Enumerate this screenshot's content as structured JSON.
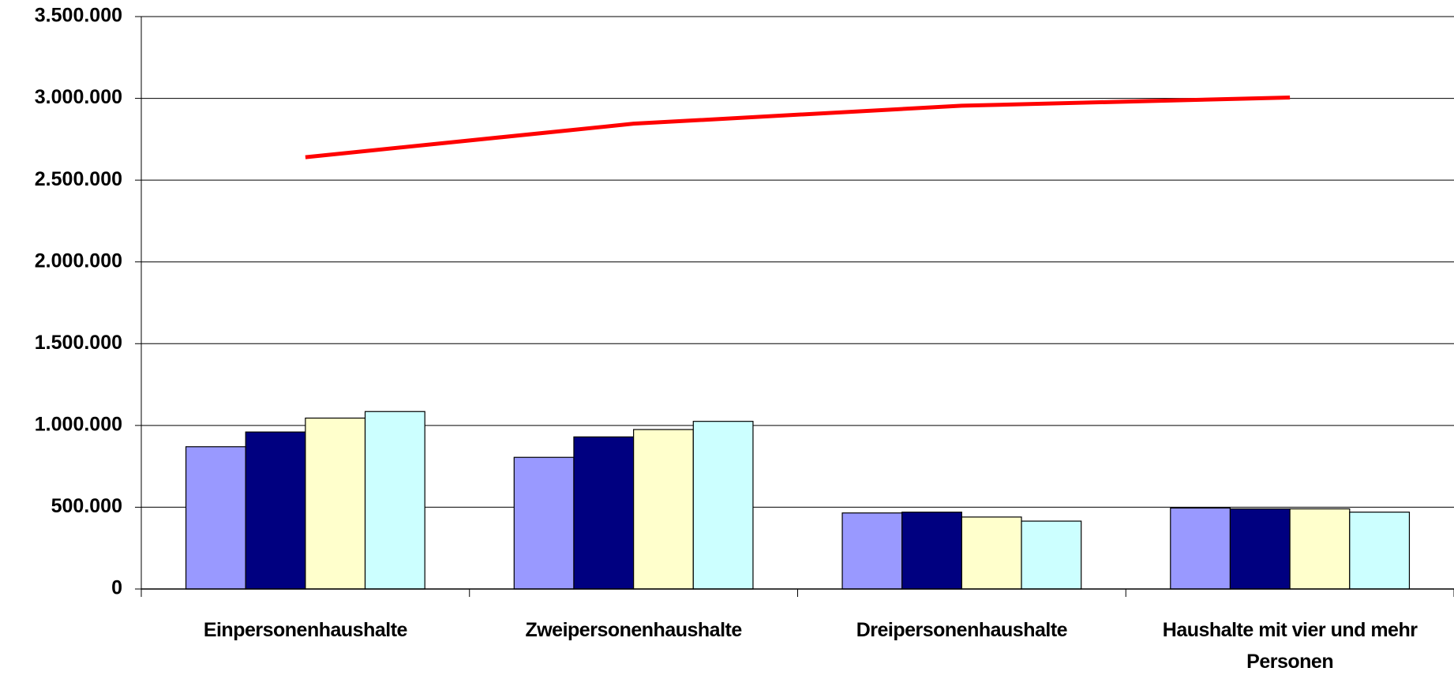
{
  "chart_data": {
    "type": "bar",
    "categories": [
      "Einpersonenhaushalte",
      "Zweipersonenhaushalte",
      "Dreipersonenhaushalte",
      "Haushalte mit vier und mehr Personen"
    ],
    "series": [
      {
        "color": "#9999ff",
        "values": [
          870000,
          805000,
          465000,
          495000
        ]
      },
      {
        "color": "#000080",
        "values": [
          960000,
          930000,
          470000,
          490000
        ]
      },
      {
        "color": "#ffffcc",
        "values": [
          1045000,
          975000,
          440000,
          490000
        ]
      },
      {
        "color": "#ccffff",
        "values": [
          1085000,
          1025000,
          415000,
          470000
        ]
      },
      {
        "type": "line",
        "color": "#ff0000",
        "values": [
          2640000,
          2845000,
          2955000,
          3005000
        ]
      }
    ],
    "ylim": [
      0,
      3500000
    ],
    "yticks": [
      0,
      {
        "value": 500000,
        "label": "500.000"
      },
      {
        "value": 1000000,
        "label": "1.000.000"
      },
      {
        "value": 1500000,
        "label": "1.500.000"
      },
      {
        "value": 2000000,
        "label": "2.000.000"
      },
      {
        "value": 2500000,
        "label": "2.500.000"
      },
      {
        "value": 3000000,
        "label": "3.000.000"
      },
      {
        "value": 3500000,
        "label": "3.500.000"
      }
    ],
    "grid": true
  }
}
